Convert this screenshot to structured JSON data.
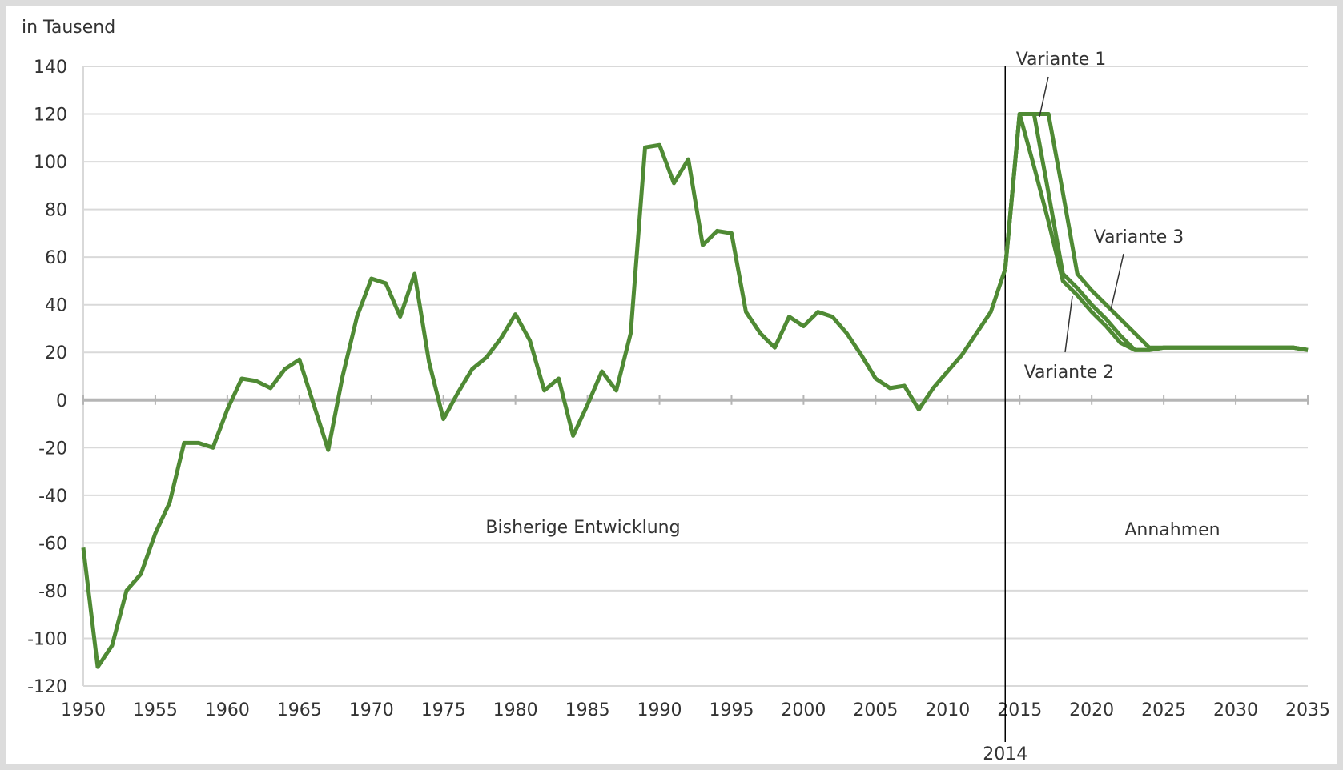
{
  "chart_data": {
    "type": "line",
    "y_label": "in Tausend",
    "x": [
      1950,
      1951,
      1952,
      1953,
      1954,
      1955,
      1956,
      1957,
      1958,
      1959,
      1960,
      1961,
      1962,
      1963,
      1964,
      1965,
      1966,
      1967,
      1968,
      1969,
      1970,
      1971,
      1972,
      1973,
      1974,
      1975,
      1976,
      1977,
      1978,
      1979,
      1980,
      1981,
      1982,
      1983,
      1984,
      1985,
      1986,
      1987,
      1988,
      1989,
      1990,
      1991,
      1992,
      1993,
      1994,
      1995,
      1996,
      1997,
      1998,
      1999,
      2000,
      2001,
      2002,
      2003,
      2004,
      2005,
      2006,
      2007,
      2008,
      2009,
      2010,
      2011,
      2012,
      2013,
      2014,
      2015,
      2016,
      2017,
      2018,
      2019,
      2020,
      2021,
      2022,
      2023,
      2024,
      2025,
      2026,
      2027,
      2028,
      2029,
      2030,
      2031,
      2032,
      2033,
      2034,
      2035
    ],
    "series": [
      {
        "color": "#4f8a34",
        "values": [
          -62,
          -112,
          -103,
          -80,
          -73,
          -56,
          -43,
          -18,
          -18,
          -20,
          -4,
          9,
          8,
          5,
          13,
          17,
          -2,
          -21,
          10,
          35,
          51,
          49,
          35,
          53,
          16,
          -8,
          3,
          13,
          18,
          26,
          36,
          25,
          4,
          9,
          -15,
          -2,
          12,
          4,
          28,
          106,
          107,
          91,
          101,
          65,
          71,
          70,
          37,
          28,
          22,
          35,
          31,
          37,
          35,
          28,
          19,
          9,
          5,
          6,
          -4,
          5,
          12,
          19,
          28,
          37,
          55,
          null,
          null,
          null,
          null,
          null,
          null,
          null,
          null,
          null,
          null,
          null,
          null,
          null,
          null,
          null,
          null,
          null,
          null,
          null,
          null,
          null
        ]
      },
      {
        "name": "Variante 1",
        "color": "#4f8a34",
        "values": [
          null,
          null,
          null,
          null,
          null,
          null,
          null,
          null,
          null,
          null,
          null,
          null,
          null,
          null,
          null,
          null,
          null,
          null,
          null,
          null,
          null,
          null,
          null,
          null,
          null,
          null,
          null,
          null,
          null,
          null,
          null,
          null,
          null,
          null,
          null,
          null,
          null,
          null,
          null,
          null,
          null,
          null,
          null,
          null,
          null,
          null,
          null,
          null,
          null,
          null,
          null,
          null,
          null,
          null,
          null,
          null,
          null,
          null,
          null,
          null,
          null,
          null,
          null,
          null,
          55,
          120,
          120,
          87,
          53,
          47,
          40,
          34,
          27,
          21,
          21,
          22,
          22,
          22,
          22,
          22,
          22,
          22,
          22,
          22,
          22,
          21
        ]
      },
      {
        "name": "Variante 2",
        "color": "#4f8a34",
        "values": [
          null,
          null,
          null,
          null,
          null,
          null,
          null,
          null,
          null,
          null,
          null,
          null,
          null,
          null,
          null,
          null,
          null,
          null,
          null,
          null,
          null,
          null,
          null,
          null,
          null,
          null,
          null,
          null,
          null,
          null,
          null,
          null,
          null,
          null,
          null,
          null,
          null,
          null,
          null,
          null,
          null,
          null,
          null,
          null,
          null,
          null,
          null,
          null,
          null,
          null,
          null,
          null,
          null,
          null,
          null,
          null,
          null,
          null,
          null,
          null,
          null,
          null,
          null,
          null,
          55,
          120,
          98,
          75,
          50,
          44,
          37,
          31,
          24,
          21,
          21,
          22,
          22,
          22,
          22,
          22,
          22,
          22,
          22,
          22,
          22,
          21
        ]
      },
      {
        "name": "Variante 3",
        "color": "#4f8a34",
        "values": [
          null,
          null,
          null,
          null,
          null,
          null,
          null,
          null,
          null,
          null,
          null,
          null,
          null,
          null,
          null,
          null,
          null,
          null,
          null,
          null,
          null,
          null,
          null,
          null,
          null,
          null,
          null,
          null,
          null,
          null,
          null,
          null,
          null,
          null,
          null,
          null,
          null,
          null,
          null,
          null,
          null,
          null,
          null,
          null,
          null,
          null,
          null,
          null,
          null,
          null,
          null,
          null,
          null,
          null,
          null,
          null,
          null,
          null,
          null,
          null,
          null,
          null,
          null,
          null,
          55,
          120,
          120,
          120,
          87,
          53,
          46,
          40,
          34,
          28,
          22,
          22,
          22,
          22,
          22,
          22,
          22,
          22,
          22,
          22,
          22,
          21
        ]
      }
    ],
    "xlim": [
      1950,
      2035
    ],
    "xticks": [
      1950,
      1955,
      1960,
      1965,
      1970,
      1975,
      1980,
      1985,
      1990,
      1995,
      2000,
      2005,
      2010,
      2015,
      2020,
      2025,
      2030,
      2035
    ],
    "ylim": [
      -120,
      140
    ],
    "yticks": [
      -120,
      -100,
      -80,
      -60,
      -40,
      -20,
      0,
      20,
      40,
      60,
      80,
      100,
      120,
      140
    ],
    "grid": true,
    "vline": 2014,
    "annotations": [
      "Bisherige Entwicklung",
      "Annahmen"
    ]
  }
}
